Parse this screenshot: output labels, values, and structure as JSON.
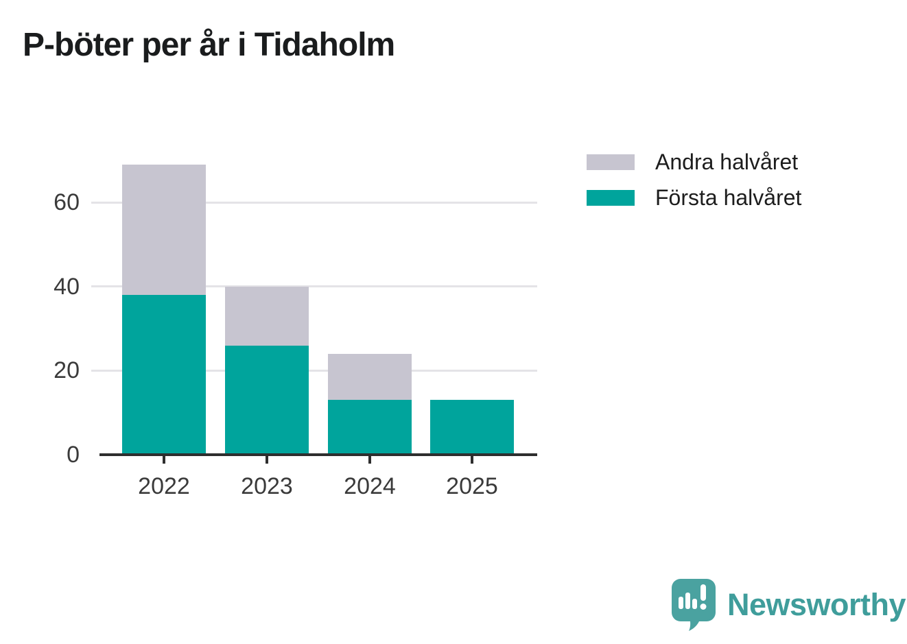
{
  "title": "P-böter per år i Tidaholm",
  "chart_data": {
    "type": "bar",
    "stacked": true,
    "title": "P-böter per år i Tidaholm",
    "categories": [
      "2022",
      "2023",
      "2024",
      "2025"
    ],
    "series": [
      {
        "name": "Första halvåret",
        "color": "#00a49c",
        "values": [
          38,
          26,
          13,
          13
        ]
      },
      {
        "name": "Andra halvåret",
        "color": "#c7c5d0",
        "values": [
          31,
          14,
          11,
          0
        ]
      }
    ],
    "totals": [
      69,
      40,
      24,
      13
    ],
    "xlabel": "",
    "ylabel": "",
    "ylim": [
      0,
      70
    ],
    "yticks": [
      0,
      20,
      40,
      60
    ],
    "grid": true,
    "legend_position": "top-right",
    "legend_order": [
      "Andra halvåret",
      "Första halvåret"
    ]
  },
  "legend": {
    "items": [
      {
        "label": "Andra halvåret",
        "color": "#c7c5d0"
      },
      {
        "label": "Första halvåret",
        "color": "#00a49c"
      }
    ]
  },
  "branding": {
    "name": "Newsworthy",
    "text_color": "#3f9d9b",
    "icon": "newsworthy-speech-bubble-bar-chart-icon",
    "icon_color": "#4aa2a0"
  },
  "colors": {
    "background": "#ffffff",
    "axis": "#2e2e2e",
    "gridline": "#e4e3e7",
    "tick_label": "#3a3a3a",
    "title": "#1a1c1d"
  }
}
